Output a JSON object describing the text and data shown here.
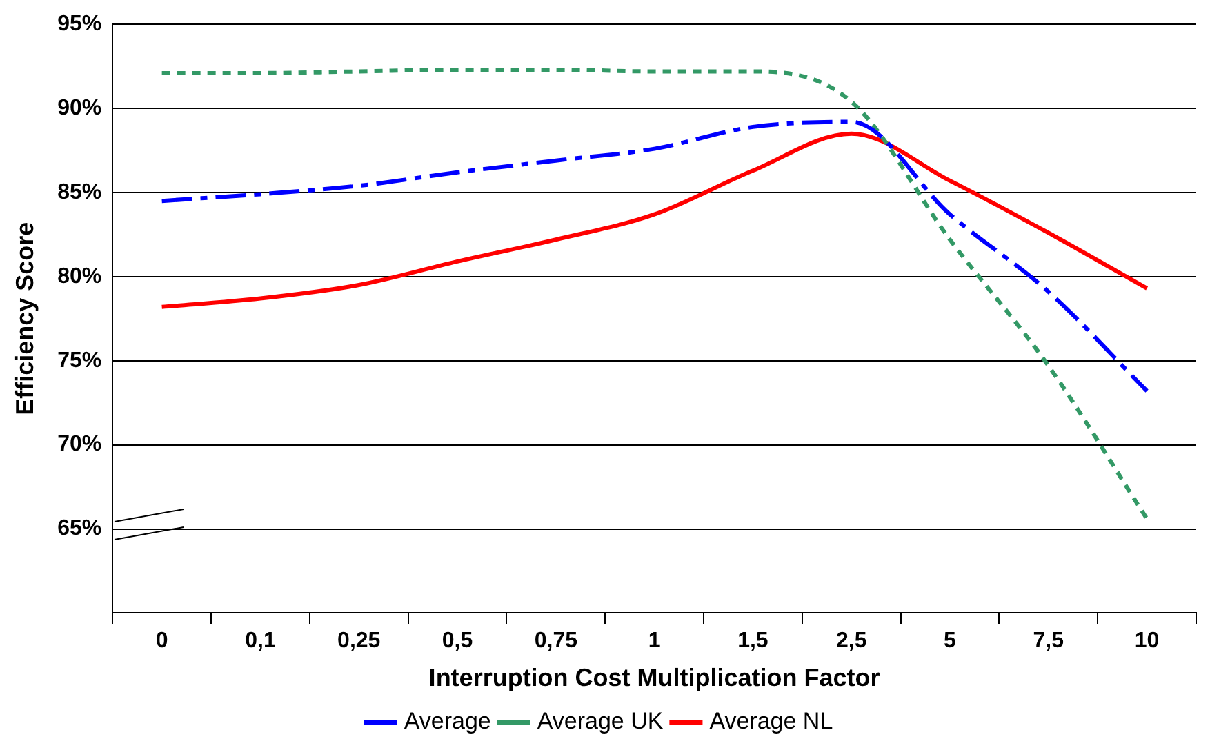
{
  "chart_data": {
    "type": "line",
    "xlabel": "Interruption Cost Multiplication Factor",
    "ylabel": "Efficiency Score",
    "categories": [
      "0",
      "0,1",
      "0,25",
      "0,5",
      "0,75",
      "1",
      "1,5",
      "2,5",
      "5",
      "7,5",
      "10"
    ],
    "series": [
      {
        "name": "Average",
        "color": "#0000ff",
        "line_style": "dashed",
        "values": [
          84.5,
          84.9,
          85.4,
          86.2,
          86.9,
          87.6,
          88.9,
          89.2,
          83.7,
          79.1,
          73.2
        ]
      },
      {
        "name": "Average UK",
        "color": "#339966",
        "line_style": "dotted",
        "values": [
          92.1,
          92.1,
          92.2,
          92.3,
          92.3,
          92.2,
          92.2,
          90.4,
          82.2,
          74.7,
          65.6
        ]
      },
      {
        "name": "Average NL",
        "color": "#ff0000",
        "line_style": "solid",
        "values": [
          78.2,
          78.7,
          79.5,
          80.9,
          82.2,
          83.7,
          86.3,
          88.5,
          85.7,
          82.6,
          79.3
        ]
      }
    ],
    "ylim": [
      60,
      95
    ],
    "yticks": [
      {
        "value": 60,
        "label": null
      },
      {
        "value": 65,
        "label": "65%"
      },
      {
        "value": 70,
        "label": "70%"
      },
      {
        "value": 75,
        "label": "75%"
      },
      {
        "value": 80,
        "label": "80%"
      },
      {
        "value": 85,
        "label": "85%"
      },
      {
        "value": 90,
        "label": "90%"
      },
      {
        "value": 95,
        "label": "95%"
      }
    ],
    "grid": "y",
    "legend": "bottom",
    "marker": "none"
  }
}
